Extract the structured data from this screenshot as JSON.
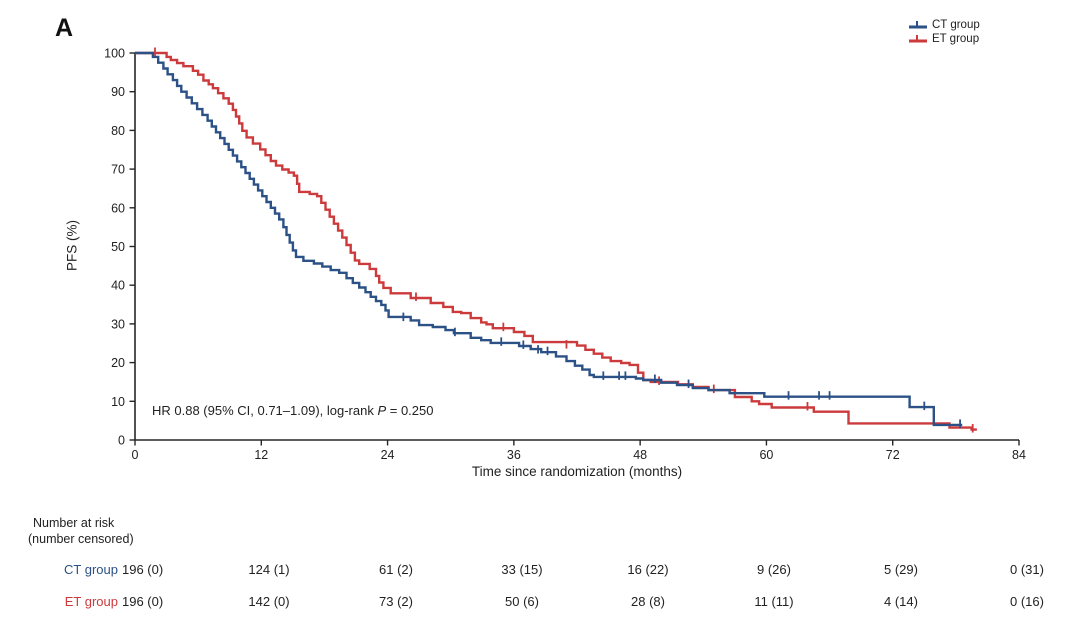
{
  "panel_label": "A",
  "chart_data": {
    "type": "line",
    "subtype": "kaplan-meier-step",
    "title": "",
    "xlabel": "Time since randomization (months)",
    "ylabel": "PFS (%)",
    "xlim": [
      0,
      84
    ],
    "ylim": [
      0,
      100
    ],
    "xticks": [
      0,
      12,
      24,
      36,
      48,
      60,
      72,
      84
    ],
    "yticks": [
      0,
      10,
      20,
      30,
      40,
      50,
      60,
      70,
      80,
      90,
      100
    ],
    "grid": false,
    "legend_position": "top-right",
    "annotation": {
      "pre": "HR 0.88 (95% CI, 0.71–1.09), log-rank ",
      "italic": "P",
      "post": " = 0.250"
    },
    "series": [
      {
        "name": "ET group",
        "color": "#cc3a3c",
        "start": [
          0,
          100
        ],
        "end": 80,
        "steps": [
          [
            3,
            99
          ],
          [
            3.4,
            98.2
          ],
          [
            4,
            97.4
          ],
          [
            4.6,
            96.6
          ],
          [
            5.5,
            95.4
          ],
          [
            6,
            94.4
          ],
          [
            6.5,
            92.9
          ],
          [
            7,
            91.9
          ],
          [
            7.4,
            90.9
          ],
          [
            7.9,
            89.6
          ],
          [
            8.4,
            88.3
          ],
          [
            8.9,
            86.9
          ],
          [
            9.3,
            85.3
          ],
          [
            9.6,
            83.6
          ],
          [
            9.9,
            81.8
          ],
          [
            10.2,
            79.9
          ],
          [
            10.6,
            78.2
          ],
          [
            11.2,
            76.6
          ],
          [
            11.9,
            75.1
          ],
          [
            12.4,
            73.6
          ],
          [
            12.9,
            72.1
          ],
          [
            13.4,
            70.9
          ],
          [
            14,
            69.9
          ],
          [
            14.6,
            69.1
          ],
          [
            15.1,
            68.3
          ],
          [
            15.4,
            66.2
          ],
          [
            15.6,
            64.1
          ],
          [
            16.6,
            63.6
          ],
          [
            17.3,
            63
          ],
          [
            17.7,
            61.3
          ],
          [
            18.1,
            59.5
          ],
          [
            18.5,
            57.7
          ],
          [
            18.9,
            55.9
          ],
          [
            19.3,
            54.1
          ],
          [
            19.7,
            52.3
          ],
          [
            20.1,
            50.4
          ],
          [
            20.5,
            48.4
          ],
          [
            20.9,
            46.4
          ],
          [
            21.3,
            45.5
          ],
          [
            22.3,
            44.2
          ],
          [
            22.9,
            42.4
          ],
          [
            23.2,
            40.7
          ],
          [
            23.6,
            39.3
          ],
          [
            24.3,
            37.9
          ],
          [
            26.2,
            36.7
          ],
          [
            28.1,
            35.4
          ],
          [
            29.3,
            34.4
          ],
          [
            30.2,
            33.1
          ],
          [
            31,
            32.8
          ],
          [
            31.9,
            31.5
          ],
          [
            32.9,
            30.4
          ],
          [
            33.4,
            29.9
          ],
          [
            34,
            28.9
          ],
          [
            36,
            27.9
          ],
          [
            37,
            26.9
          ],
          [
            37.8,
            25.3
          ],
          [
            42,
            24.4
          ],
          [
            42.8,
            23.3
          ],
          [
            43.6,
            22.3
          ],
          [
            44.4,
            21.3
          ],
          [
            45.2,
            20.4
          ],
          [
            46.2,
            19.9
          ],
          [
            47,
            19.4
          ],
          [
            47.8,
            17.4
          ],
          [
            48.3,
            15.5
          ],
          [
            49,
            15
          ],
          [
            51.6,
            14.4
          ],
          [
            53,
            13.7
          ],
          [
            54.5,
            12.9
          ],
          [
            57,
            11.1
          ],
          [
            58.6,
            10
          ],
          [
            59.3,
            9.3
          ],
          [
            60.5,
            8.4
          ],
          [
            64.5,
            7.3
          ],
          [
            67.8,
            4.3
          ],
          [
            77.4,
            3.2
          ],
          [
            79.5,
            2.7
          ]
        ],
        "censor_marks": [
          [
            1.9,
            100
          ],
          [
            26.7,
            36.7
          ],
          [
            35,
            28.9
          ],
          [
            41,
            24.4
          ],
          [
            49.8,
            15
          ],
          [
            55,
            12.9
          ],
          [
            63.9,
            8.4
          ],
          [
            79.6,
            2.7
          ]
        ]
      },
      {
        "name": "CT group",
        "color": "#2b5186",
        "start": [
          0,
          100
        ],
        "end": 78.6,
        "steps": [
          [
            1.7,
            99
          ],
          [
            2.2,
            97.5
          ],
          [
            2.7,
            96
          ],
          [
            3.1,
            94.5
          ],
          [
            3.6,
            93
          ],
          [
            4,
            91.5
          ],
          [
            4.4,
            90
          ],
          [
            4.9,
            88.5
          ],
          [
            5.4,
            87
          ],
          [
            5.9,
            85.5
          ],
          [
            6.4,
            84
          ],
          [
            6.9,
            82.5
          ],
          [
            7.3,
            81
          ],
          [
            7.7,
            79.5
          ],
          [
            8.1,
            78
          ],
          [
            8.5,
            76.5
          ],
          [
            8.9,
            75
          ],
          [
            9.3,
            73.5
          ],
          [
            9.7,
            72
          ],
          [
            10.1,
            70.5
          ],
          [
            10.5,
            69
          ],
          [
            10.9,
            67.5
          ],
          [
            11.3,
            66
          ],
          [
            11.7,
            64.5
          ],
          [
            12.1,
            63
          ],
          [
            12.5,
            61.5
          ],
          [
            12.9,
            60
          ],
          [
            13.3,
            58.5
          ],
          [
            13.7,
            57
          ],
          [
            14.1,
            55
          ],
          [
            14.4,
            53
          ],
          [
            14.7,
            51
          ],
          [
            15,
            49
          ],
          [
            15.3,
            47.3
          ],
          [
            16,
            46.3
          ],
          [
            17,
            45.6
          ],
          [
            17.8,
            44.8
          ],
          [
            18.6,
            43.9
          ],
          [
            19.4,
            43.2
          ],
          [
            20.1,
            41.8
          ],
          [
            20.7,
            40.6
          ],
          [
            21.3,
            39.4
          ],
          [
            21.9,
            38.2
          ],
          [
            22.4,
            37
          ],
          [
            22.9,
            35.9
          ],
          [
            23.4,
            34.9
          ],
          [
            23.8,
            33.5
          ],
          [
            24.1,
            31.8
          ],
          [
            26.2,
            30.9
          ],
          [
            27,
            29.7
          ],
          [
            28.3,
            29.2
          ],
          [
            29.5,
            28.4
          ],
          [
            30.3,
            27.6
          ],
          [
            31.9,
            26.4
          ],
          [
            32.9,
            25.8
          ],
          [
            33.8,
            25.1
          ],
          [
            36.5,
            24.3
          ],
          [
            37.6,
            23.5
          ],
          [
            38.6,
            22.7
          ],
          [
            40,
            21.6
          ],
          [
            41,
            20.4
          ],
          [
            41.8,
            19.2
          ],
          [
            42.5,
            18.2
          ],
          [
            43.2,
            16.8
          ],
          [
            43.6,
            16.3
          ],
          [
            47.6,
            15.9
          ],
          [
            48.3,
            15.5
          ],
          [
            50,
            14.8
          ],
          [
            51.5,
            14.2
          ],
          [
            53,
            13.4
          ],
          [
            54.5,
            12.9
          ],
          [
            56.5,
            12.1
          ],
          [
            59.8,
            11.2
          ],
          [
            73.6,
            8.5
          ],
          [
            75.9,
            3.9
          ]
        ],
        "censor_marks": [
          [
            25.5,
            31.5
          ],
          [
            30.4,
            27.6
          ],
          [
            34.8,
            25.1
          ],
          [
            36.9,
            24.3
          ],
          [
            38.3,
            23.1
          ],
          [
            39.2,
            22.7
          ],
          [
            44.5,
            16.3
          ],
          [
            46,
            16.3
          ],
          [
            46.6,
            16.3
          ],
          [
            49.4,
            15.5
          ],
          [
            52.6,
            14.2
          ],
          [
            62.1,
            11.2
          ],
          [
            65,
            11.2
          ],
          [
            66,
            11.2
          ],
          [
            75,
            8.5
          ],
          [
            78.4,
            3.9
          ]
        ]
      }
    ]
  },
  "legend": {
    "items": [
      {
        "label": "CT group",
        "color": "#2b5186"
      },
      {
        "label": "ET group",
        "color": "#cc3a3c"
      }
    ]
  },
  "risk_table": {
    "header_line1": "Number at risk",
    "header_line2": "(number censored)",
    "time_points": [
      0,
      12,
      24,
      36,
      48,
      60,
      72,
      84
    ],
    "rows": [
      {
        "label": "CT group",
        "color": "#2b5186",
        "values": [
          "196 (0)",
          "124 (1)",
          "61 (2)",
          "33 (15)",
          "16 (22)",
          "9 (26)",
          "5 (29)",
          "0 (31)"
        ]
      },
      {
        "label": "ET group",
        "color": "#cc3a3c",
        "values": [
          "196 (0)",
          "142 (0)",
          "73 (2)",
          "50 (6)",
          "28 (8)",
          "11 (11)",
          "4 (14)",
          "0 (16)"
        ]
      }
    ]
  }
}
